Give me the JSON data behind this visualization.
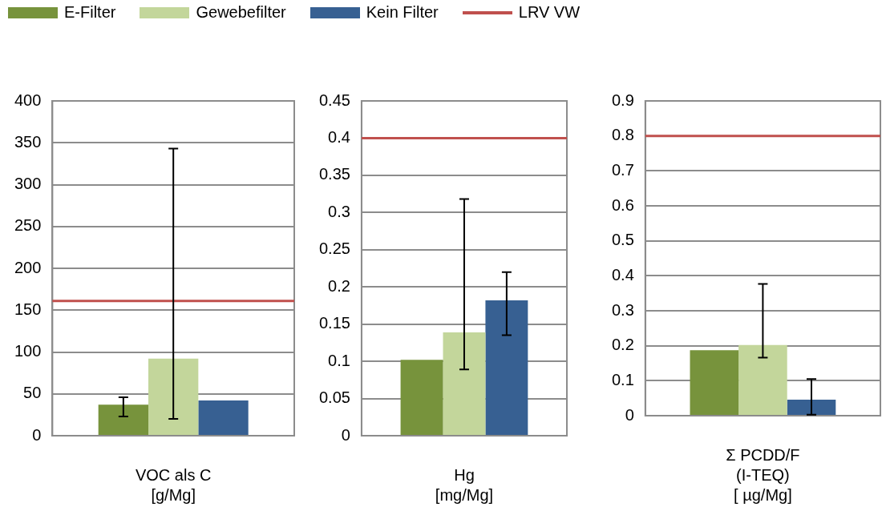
{
  "chart_data": [
    {
      "type": "bar",
      "xlabel": "VOC als C\n[g/Mg]",
      "categories": [
        null
      ],
      "legend": "top",
      "grid": "y",
      "ylim": [
        0,
        400
      ],
      "yticks": [
        0,
        50,
        100,
        150,
        200,
        250,
        300,
        350,
        400
      ],
      "series": [
        {
          "name": "E-Filter",
          "color": "#77933c",
          "values": [
            37
          ],
          "errors": [
            [
              23,
              46
            ]
          ]
        },
        {
          "name": "Gewebefilter",
          "color": "#c3d69b",
          "values": [
            92
          ],
          "errors": [
            [
              20,
              343
            ]
          ]
        },
        {
          "name": "Kein Filter",
          "color": "#376092",
          "values": [
            42
          ],
          "errors": [
            null
          ]
        }
      ],
      "ref_lines": [
        {
          "axis": "y",
          "value": 161,
          "label": "LRV VW",
          "color": "#c0504d"
        }
      ]
    },
    {
      "type": "bar",
      "xlabel": "Hg\n[mg/Mg]",
      "categories": [
        null
      ],
      "grid": "y",
      "ylim": [
        0,
        0.45
      ],
      "yticks": [
        {
          "value": 0,
          "label": "0"
        },
        {
          "value": 0.05,
          "label": "0.05"
        },
        {
          "value": 0.1,
          "label": "0.1"
        },
        {
          "value": 0.15,
          "label": "0.15"
        },
        {
          "value": 0.2,
          "label": "0.2"
        },
        {
          "value": 0.25,
          "label": "0.25"
        },
        {
          "value": 0.3,
          "label": "0.3"
        },
        {
          "value": 0.35,
          "label": "0.35"
        },
        {
          "value": 0.4,
          "label": "0.4"
        },
        {
          "value": 0.45,
          "label": "0.45"
        }
      ],
      "series": [
        {
          "color": "#77933c",
          "values": [
            0.102
          ],
          "errors": [
            null
          ]
        },
        {
          "color": "#c3d69b",
          "values": [
            0.139
          ],
          "errors": [
            [
              0.089,
              0.318
            ]
          ]
        },
        {
          "color": "#376092",
          "values": [
            0.182
          ],
          "errors": [
            [
              0.135,
              0.22
            ]
          ]
        }
      ],
      "ref_lines": [
        {
          "axis": "y",
          "value": 0.4,
          "color": "#c0504d"
        }
      ]
    },
    {
      "type": "bar",
      "xlabel": "Σ PCDD/F\n(I-TEQ)\n[ µg/Mg]",
      "categories": [
        null
      ],
      "grid": "y",
      "ylim": [
        0,
        0.9
      ],
      "yticks": [
        {
          "value": 0,
          "label": "0"
        },
        {
          "value": 0.1,
          "label": "0.1"
        },
        {
          "value": 0.2,
          "label": "0.2"
        },
        {
          "value": 0.3,
          "label": "0.3"
        },
        {
          "value": 0.4,
          "label": "0.4"
        },
        {
          "value": 0.5,
          "label": "0.5"
        },
        {
          "value": 0.6,
          "label": "0.6"
        },
        {
          "value": 0.7,
          "label": "0.7"
        },
        {
          "value": 0.8,
          "label": "0.8"
        },
        {
          "value": 0.9,
          "label": "0.9"
        }
      ],
      "series": [
        {
          "color": "#77933c",
          "values": [
            0.187
          ],
          "errors": [
            null
          ]
        },
        {
          "color": "#c3d69b",
          "values": [
            0.202
          ],
          "errors": [
            [
              0.166,
              0.377
            ]
          ]
        },
        {
          "color": "#376092",
          "values": [
            0.046
          ],
          "errors": [
            [
              0.003,
              0.105
            ]
          ]
        }
      ],
      "ref_lines": [
        {
          "axis": "y",
          "value": 0.8,
          "color": "#c0504d"
        }
      ]
    }
  ]
}
